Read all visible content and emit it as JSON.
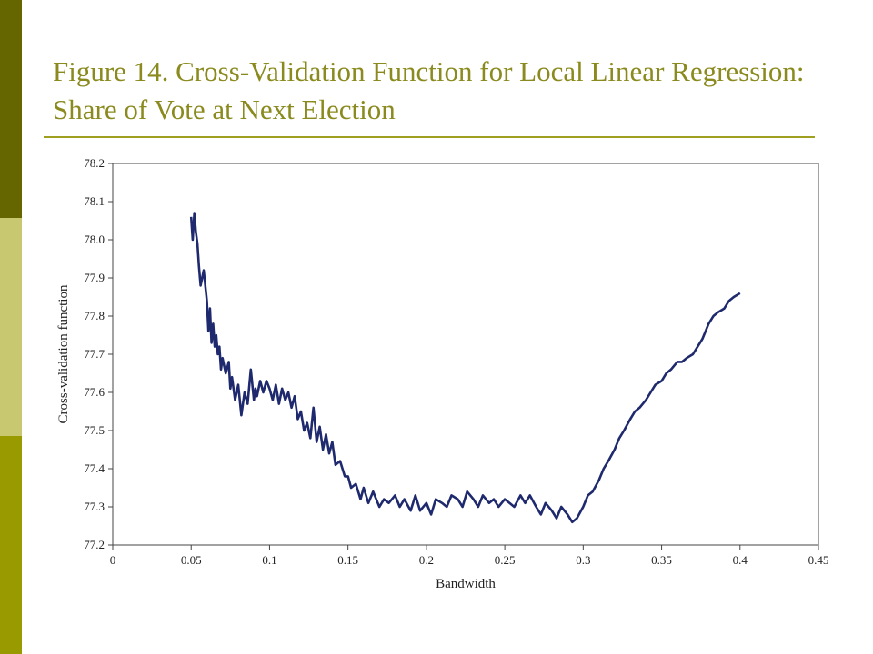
{
  "slide": {
    "title": "Figure 14. Cross-Validation Function for Local Linear Regression: Share of Vote at Next Election",
    "accent_colors": [
      "#666600",
      "#c8c870",
      "#999900"
    ],
    "title_color": "#8a8a1e"
  },
  "chart_data": {
    "type": "line",
    "title": "",
    "xlabel": "Bandwidth",
    "ylabel": "Cross-validation function",
    "xlim": [
      0,
      0.45
    ],
    "ylim": [
      77.2,
      78.2
    ],
    "x_ticks": [
      "0",
      "0.05",
      "0.1",
      "0.15",
      "0.2",
      "0.25",
      "0.3",
      "0.35",
      "0.4",
      "0.45"
    ],
    "y_ticks": [
      "77.2",
      "77.3",
      "77.4",
      "77.5",
      "77.6",
      "77.7",
      "77.8",
      "77.9",
      "78.0",
      "78.1",
      "78.2"
    ],
    "grid": false,
    "legend": "none",
    "line_color": "#1f2a6e",
    "series": [
      {
        "x": [
          0.05,
          0.051,
          0.052,
          0.053,
          0.054,
          0.055,
          0.056,
          0.058,
          0.06,
          0.061,
          0.062,
          0.063,
          0.064,
          0.065,
          0.066,
          0.067,
          0.068,
          0.069,
          0.07,
          0.072,
          0.074,
          0.075,
          0.076,
          0.078,
          0.08,
          0.082,
          0.084,
          0.086,
          0.088,
          0.09,
          0.091,
          0.092,
          0.094,
          0.096,
          0.098,
          0.1,
          0.102,
          0.104,
          0.106,
          0.108,
          0.11,
          0.112,
          0.114,
          0.116,
          0.118,
          0.12,
          0.122,
          0.124,
          0.126,
          0.128,
          0.13,
          0.132,
          0.134,
          0.136,
          0.138,
          0.14,
          0.142,
          0.145,
          0.148,
          0.15,
          0.152,
          0.155,
          0.158,
          0.16,
          0.163,
          0.166,
          0.17,
          0.173,
          0.176,
          0.18,
          0.183,
          0.186,
          0.19,
          0.193,
          0.196,
          0.2,
          0.203,
          0.206,
          0.21,
          0.213,
          0.216,
          0.22,
          0.223,
          0.226,
          0.23,
          0.233,
          0.236,
          0.24,
          0.243,
          0.246,
          0.25,
          0.253,
          0.256,
          0.26,
          0.263,
          0.266,
          0.27,
          0.273,
          0.276,
          0.28,
          0.283,
          0.286,
          0.29,
          0.293,
          0.296,
          0.3,
          0.303,
          0.306,
          0.31,
          0.313,
          0.316,
          0.32,
          0.323,
          0.326,
          0.33,
          0.333,
          0.336,
          0.34,
          0.343,
          0.346,
          0.35,
          0.353,
          0.356,
          0.36,
          0.363,
          0.366,
          0.37,
          0.373,
          0.376,
          0.38,
          0.383,
          0.386,
          0.39,
          0.393,
          0.396,
          0.4
        ],
        "y": [
          78.06,
          78.0,
          78.07,
          78.02,
          77.99,
          77.93,
          77.88,
          77.92,
          77.84,
          77.76,
          77.82,
          77.73,
          77.78,
          77.72,
          77.75,
          77.7,
          77.72,
          77.66,
          77.69,
          77.65,
          77.68,
          77.61,
          77.64,
          77.58,
          77.62,
          77.54,
          77.6,
          77.57,
          77.66,
          77.58,
          77.61,
          77.59,
          77.63,
          77.6,
          77.63,
          77.61,
          77.58,
          77.62,
          77.57,
          77.61,
          77.58,
          77.6,
          77.56,
          77.59,
          77.53,
          77.55,
          77.5,
          77.52,
          77.48,
          77.56,
          77.47,
          77.51,
          77.45,
          77.49,
          77.44,
          77.47,
          77.41,
          77.42,
          77.38,
          77.38,
          77.35,
          77.36,
          77.32,
          77.35,
          77.31,
          77.34,
          77.3,
          77.32,
          77.31,
          77.33,
          77.3,
          77.32,
          77.29,
          77.33,
          77.29,
          77.31,
          77.28,
          77.32,
          77.31,
          77.3,
          77.33,
          77.32,
          77.3,
          77.34,
          77.32,
          77.3,
          77.33,
          77.31,
          77.32,
          77.3,
          77.32,
          77.31,
          77.3,
          77.33,
          77.31,
          77.33,
          77.3,
          77.28,
          77.31,
          77.29,
          77.27,
          77.3,
          77.28,
          77.26,
          77.27,
          77.3,
          77.33,
          77.34,
          77.37,
          77.4,
          77.42,
          77.45,
          77.48,
          77.5,
          77.53,
          77.55,
          77.56,
          77.58,
          77.6,
          77.62,
          77.63,
          77.65,
          77.66,
          77.68,
          77.68,
          77.69,
          77.7,
          77.72,
          77.74,
          77.78,
          77.8,
          77.81,
          77.82,
          77.84,
          77.85,
          77.86
        ]
      }
    ]
  }
}
